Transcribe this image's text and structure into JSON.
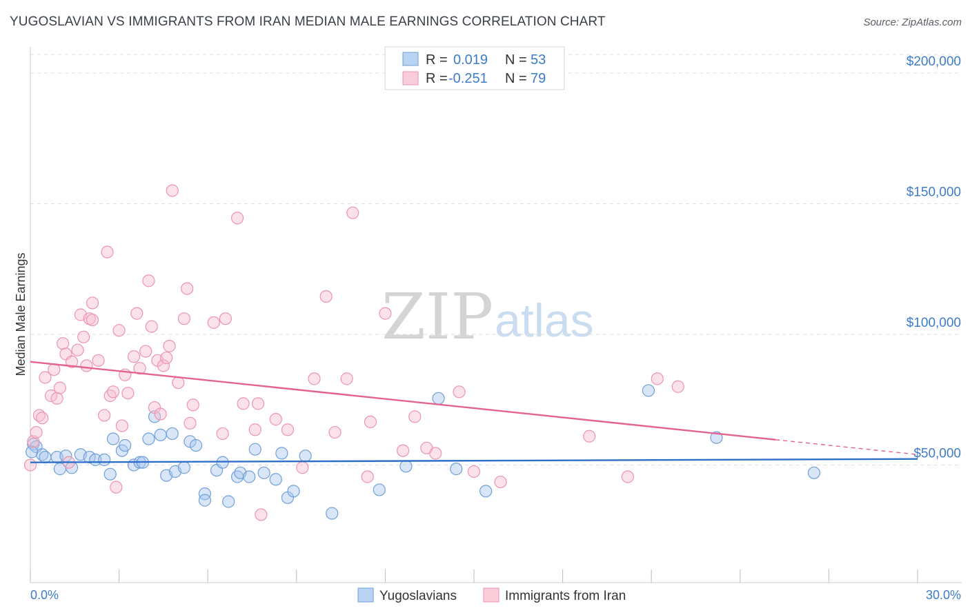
{
  "title": "YUGOSLAVIAN VS IMMIGRANTS FROM IRAN MEDIAN MALE EARNINGS CORRELATION CHART",
  "source": "Source: ZipAtlas.com",
  "watermark": {
    "zip": "ZIP",
    "atlas": "atlas"
  },
  "legend": {
    "rows": [
      {
        "r_label": "R =",
        "r_value": "0.019",
        "n_label": "N =",
        "n_value": "53"
      },
      {
        "r_label": "R =",
        "r_value": "-0.251",
        "n_label": "N =",
        "n_value": "79"
      }
    ]
  },
  "bottom_legend": [
    "Yugoslavians",
    "Immigrants from Iran"
  ],
  "colors": {
    "blue_fill": "#a8c8f0",
    "blue_stroke": "#6f9fd8",
    "blue_line": "#2f6fc9",
    "pink_fill": "#f6bfd0",
    "pink_stroke": "#ec93b0",
    "pink_line": "#e3638e",
    "tick_label": "#3d7cc9",
    "grid": "#dddddd"
  },
  "chart_data": {
    "type": "scatter",
    "title": "YUGOSLAVIAN VS IMMIGRANTS FROM IRAN MEDIAN MALE EARNINGS CORRELATION CHART",
    "xlabel": "",
    "ylabel": "Median Male Earnings",
    "xlim": [
      0,
      30
    ],
    "ylim": [
      5000,
      210000
    ],
    "x_tick_labels": [
      "0.0%",
      "30.0%"
    ],
    "y_ticks": [
      50000,
      100000,
      150000,
      200000
    ],
    "y_tick_labels": [
      "$50,000",
      "$100,000",
      "$150,000",
      "$200,000"
    ],
    "series": [
      {
        "name": "Yugoslavians",
        "r": 0.019,
        "n": 53,
        "trend": {
          "x": [
            0,
            30
          ],
          "y": [
            51000,
            52300
          ],
          "dashed_from": null
        },
        "points": [
          [
            0.1,
            58000
          ],
          [
            0.2,
            57000
          ],
          [
            0.4,
            54000
          ],
          [
            0.5,
            53000
          ],
          [
            0.9,
            53000
          ],
          [
            1.0,
            48500
          ],
          [
            1.2,
            53500
          ],
          [
            1.4,
            49000
          ],
          [
            1.7,
            54000
          ],
          [
            2.0,
            53000
          ],
          [
            2.2,
            52000
          ],
          [
            2.5,
            52000
          ],
          [
            2.7,
            46500
          ],
          [
            2.8,
            60000
          ],
          [
            3.1,
            55500
          ],
          [
            3.2,
            57500
          ],
          [
            3.5,
            50000
          ],
          [
            3.7,
            51000
          ],
          [
            3.8,
            51000
          ],
          [
            4.0,
            60000
          ],
          [
            4.2,
            68500
          ],
          [
            4.4,
            61500
          ],
          [
            4.6,
            46000
          ],
          [
            4.8,
            62000
          ],
          [
            4.9,
            47500
          ],
          [
            5.2,
            49000
          ],
          [
            5.4,
            59000
          ],
          [
            5.6,
            57500
          ],
          [
            5.9,
            39000
          ],
          [
            5.9,
            36500
          ],
          [
            6.3,
            48000
          ],
          [
            6.5,
            51000
          ],
          [
            6.7,
            36000
          ],
          [
            7.0,
            45500
          ],
          [
            7.1,
            47000
          ],
          [
            7.4,
            45500
          ],
          [
            7.6,
            56000
          ],
          [
            7.9,
            47000
          ],
          [
            8.3,
            44500
          ],
          [
            8.5,
            54500
          ],
          [
            8.7,
            37500
          ],
          [
            8.9,
            40000
          ],
          [
            9.3,
            53500
          ],
          [
            10.2,
            31500
          ],
          [
            11.8,
            40500
          ],
          [
            12.7,
            49500
          ],
          [
            13.8,
            75500
          ],
          [
            14.4,
            48500
          ],
          [
            15.4,
            40000
          ],
          [
            20.9,
            78500
          ],
          [
            23.2,
            60500
          ],
          [
            26.5,
            47000
          ],
          [
            0.05,
            55000
          ]
        ]
      },
      {
        "name": "Immigrants from Iran",
        "r": -0.251,
        "n": 79,
        "trend": {
          "x": [
            0,
            30
          ],
          "y": [
            89500,
            54000
          ],
          "dashed_from": 25.2
        },
        "points": [
          [
            0.0,
            50000
          ],
          [
            0.1,
            59000
          ],
          [
            0.2,
            62500
          ],
          [
            0.3,
            69000
          ],
          [
            0.4,
            68000
          ],
          [
            0.5,
            83500
          ],
          [
            0.7,
            76500
          ],
          [
            0.8,
            86500
          ],
          [
            0.9,
            75500
          ],
          [
            1.0,
            79500
          ],
          [
            1.1,
            96500
          ],
          [
            1.2,
            92500
          ],
          [
            1.3,
            51000
          ],
          [
            1.4,
            89500
          ],
          [
            1.6,
            94000
          ],
          [
            1.7,
            107500
          ],
          [
            1.8,
            99000
          ],
          [
            1.9,
            88000
          ],
          [
            2.0,
            106000
          ],
          [
            2.1,
            105500
          ],
          [
            2.1,
            112000
          ],
          [
            2.3,
            90000
          ],
          [
            2.5,
            69000
          ],
          [
            2.6,
            131500
          ],
          [
            2.7,
            76500
          ],
          [
            2.8,
            78000
          ],
          [
            2.9,
            41500
          ],
          [
            3.0,
            101500
          ],
          [
            3.1,
            65000
          ],
          [
            3.2,
            84500
          ],
          [
            3.3,
            77500
          ],
          [
            3.5,
            91500
          ],
          [
            3.6,
            108000
          ],
          [
            3.7,
            87000
          ],
          [
            3.9,
            93500
          ],
          [
            4.0,
            120500
          ],
          [
            4.1,
            103000
          ],
          [
            4.2,
            72000
          ],
          [
            4.3,
            90000
          ],
          [
            4.4,
            69500
          ],
          [
            4.5,
            88000
          ],
          [
            4.6,
            91000
          ],
          [
            4.7,
            95500
          ],
          [
            4.8,
            155000
          ],
          [
            5.0,
            81500
          ],
          [
            5.2,
            106000
          ],
          [
            5.3,
            117500
          ],
          [
            5.4,
            66000
          ],
          [
            5.5,
            73000
          ],
          [
            6.2,
            104500
          ],
          [
            6.5,
            62000
          ],
          [
            6.6,
            106000
          ],
          [
            7.0,
            144500
          ],
          [
            7.2,
            73500
          ],
          [
            7.6,
            63500
          ],
          [
            7.7,
            73500
          ],
          [
            7.8,
            31000
          ],
          [
            8.3,
            67500
          ],
          [
            8.7,
            63500
          ],
          [
            9.2,
            49000
          ],
          [
            9.6,
            83000
          ],
          [
            10.0,
            114500
          ],
          [
            10.3,
            62500
          ],
          [
            10.7,
            83000
          ],
          [
            10.9,
            146500
          ],
          [
            11.4,
            45500
          ],
          [
            11.5,
            66500
          ],
          [
            12.0,
            108000
          ],
          [
            12.6,
            55500
          ],
          [
            13.0,
            68500
          ],
          [
            13.4,
            56500
          ],
          [
            13.7,
            54500
          ],
          [
            14.5,
            78000
          ],
          [
            15.0,
            47500
          ],
          [
            15.9,
            43500
          ],
          [
            18.9,
            61000
          ],
          [
            20.2,
            45500
          ],
          [
            21.2,
            83000
          ],
          [
            21.9,
            80000
          ]
        ]
      }
    ]
  }
}
